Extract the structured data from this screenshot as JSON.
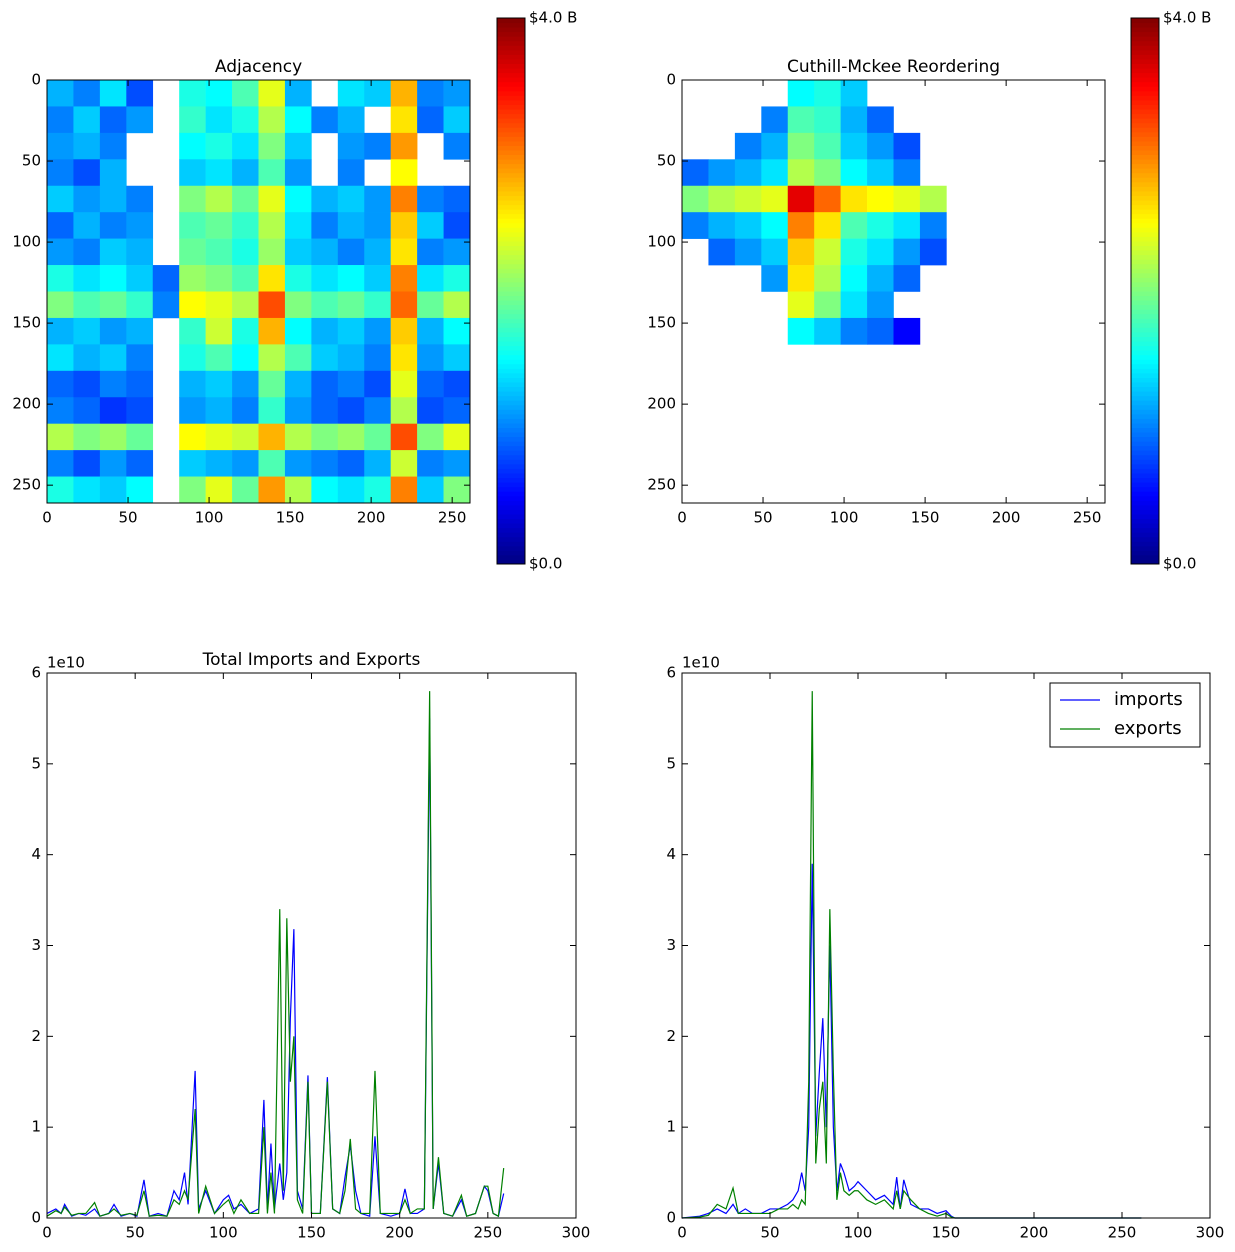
{
  "chart_data": [
    {
      "type": "heatmap",
      "title": "Adjacency",
      "colormap": "jet",
      "xlim": [
        0,
        261
      ],
      "ylim": [
        261,
        0
      ],
      "xticks": [
        0,
        50,
        100,
        150,
        200,
        250
      ],
      "yticks": [
        0,
        50,
        100,
        150,
        200,
        250
      ],
      "colorbar": {
        "lim": [
          0,
          4000000000
        ],
        "ticks": [
          {
            "value": 0,
            "label": "$0.0"
          },
          {
            "value": 4000000000,
            "label": "$4.0 B"
          }
        ]
      },
      "matrix": [
        [
          1200000000.0,
          1000000000.0,
          1400000000.0,
          800000000.0,
          null,
          1600000000.0,
          1500000000.0,
          1800000000.0,
          2400000000.0,
          1200000000.0,
          null,
          1400000000.0,
          1300000000.0,
          2800000000.0,
          1000000000.0,
          1100000000.0
        ],
        [
          1000000000.0,
          1300000000.0,
          900000000.0,
          1100000000.0,
          null,
          1700000000.0,
          1400000000.0,
          1600000000.0,
          2200000000.0,
          1500000000.0,
          1000000000.0,
          1200000000.0,
          null,
          2600000000.0,
          900000000.0,
          1300000000.0
        ],
        [
          1100000000.0,
          1200000000.0,
          1000000000.0,
          null,
          null,
          1500000000.0,
          1600000000.0,
          1400000000.0,
          2000000000.0,
          1300000000.0,
          null,
          1100000000.0,
          1000000000.0,
          2900000000.0,
          null,
          1000000000.0
        ],
        [
          1000000000.0,
          800000000.0,
          1200000000.0,
          null,
          null,
          1300000000.0,
          1400000000.0,
          1200000000.0,
          1800000000.0,
          1100000000.0,
          null,
          1000000000.0,
          null,
          2500000000.0,
          null,
          null
        ],
        [
          1300000000.0,
          1100000000.0,
          1200000000.0,
          1000000000.0,
          null,
          2000000000.0,
          2200000000.0,
          1900000000.0,
          2400000000.0,
          1500000000.0,
          1200000000.0,
          1300000000.0,
          1100000000.0,
          3000000000.0,
          1000000000.0,
          900000000.0
        ],
        [
          900000000.0,
          1200000000.0,
          1000000000.0,
          1100000000.0,
          null,
          1800000000.0,
          1900000000.0,
          1700000000.0,
          2200000000.0,
          1400000000.0,
          1000000000.0,
          1200000000.0,
          1100000000.0,
          2700000000.0,
          1300000000.0,
          800000000.0
        ],
        [
          1100000000.0,
          1000000000.0,
          1300000000.0,
          1200000000.0,
          null,
          1900000000.0,
          1800000000.0,
          1600000000.0,
          2100000000.0,
          1300000000.0,
          1200000000.0,
          1000000000.0,
          1200000000.0,
          2600000000.0,
          1000000000.0,
          1100000000.0
        ],
        [
          1600000000.0,
          1400000000.0,
          1500000000.0,
          1300000000.0,
          900000000.0,
          2100000000.0,
          2000000000.0,
          1800000000.0,
          2600000000.0,
          1600000000.0,
          1400000000.0,
          1500000000.0,
          1300000000.0,
          3000000000.0,
          1400000000.0,
          1600000000.0
        ],
        [
          2000000000.0,
          1800000000.0,
          1900000000.0,
          1700000000.0,
          1000000000.0,
          2500000000.0,
          2400000000.0,
          2200000000.0,
          3200000000.0,
          2000000000.0,
          1800000000.0,
          1900000000.0,
          1700000000.0,
          3100000000.0,
          1900000000.0,
          2200000000.0
        ],
        [
          1200000000.0,
          1300000000.0,
          1100000000.0,
          1200000000.0,
          null,
          1700000000.0,
          2300000000.0,
          1600000000.0,
          2800000000.0,
          1500000000.0,
          1200000000.0,
          1300000000.0,
          1100000000.0,
          2700000000.0,
          1200000000.0,
          1500000000.0
        ],
        [
          1400000000.0,
          1200000000.0,
          1300000000.0,
          1000000000.0,
          null,
          1600000000.0,
          1800000000.0,
          1500000000.0,
          2200000000.0,
          1800000000.0,
          1300000000.0,
          1200000000.0,
          1000000000.0,
          2600000000.0,
          1100000000.0,
          1300000000.0
        ],
        [
          900000000.0,
          800000000.0,
          1000000000.0,
          900000000.0,
          null,
          1200000000.0,
          1300000000.0,
          1100000000.0,
          1900000000.0,
          1200000000.0,
          900000000.0,
          1000000000.0,
          800000000.0,
          2400000000.0,
          900000000.0,
          800000000.0
        ],
        [
          1000000000.0,
          900000000.0,
          700000000.0,
          800000000.0,
          null,
          1100000000.0,
          1200000000.0,
          1000000000.0,
          1700000000.0,
          1100000000.0,
          900000000.0,
          800000000.0,
          1000000000.0,
          2200000000.0,
          800000000.0,
          900000000.0
        ],
        [
          2200000000.0,
          2000000000.0,
          2100000000.0,
          1900000000.0,
          null,
          2500000000.0,
          2400000000.0,
          2300000000.0,
          2800000000.0,
          2200000000.0,
          2000000000.0,
          2100000000.0,
          1900000000.0,
          3200000000.0,
          2000000000.0,
          2400000000.0
        ],
        [
          1000000000.0,
          800000000.0,
          1100000000.0,
          900000000.0,
          null,
          1300000000.0,
          1200000000.0,
          1100000000.0,
          1800000000.0,
          1100000000.0,
          1000000000.0,
          900000000.0,
          1200000000.0,
          2300000000.0,
          1000000000.0,
          1100000000.0
        ],
        [
          1600000000.0,
          1400000000.0,
          1300000000.0,
          1500000000.0,
          null,
          2000000000.0,
          2400000000.0,
          1900000000.0,
          2900000000.0,
          2200000000.0,
          1500000000.0,
          1400000000.0,
          1600000000.0,
          3000000000.0,
          1300000000.0,
          2000000000.0
        ]
      ]
    },
    {
      "type": "heatmap",
      "title": "Cuthill-Mckee Reordering",
      "colormap": "jet",
      "xlim": [
        0,
        261
      ],
      "ylim": [
        261,
        0
      ],
      "xticks": [
        0,
        50,
        100,
        150,
        200,
        250
      ],
      "yticks": [
        0,
        50,
        100,
        150,
        200,
        250
      ],
      "colorbar": {
        "lim": [
          0,
          4000000000
        ],
        "ticks": [
          {
            "value": 0,
            "label": "$0.0"
          },
          {
            "value": 4000000000,
            "label": "$4.0 B"
          }
        ]
      },
      "matrix": [
        [
          null,
          null,
          null,
          null,
          1500000000.0,
          1600000000.0,
          1300000000.0,
          null,
          null,
          null,
          null,
          null,
          null,
          null,
          null,
          null
        ],
        [
          null,
          null,
          null,
          1000000000.0,
          1800000000.0,
          1700000000.0,
          1200000000.0,
          900000000.0,
          null,
          null,
          null,
          null,
          null,
          null,
          null,
          null
        ],
        [
          null,
          null,
          1000000000.0,
          1200000000.0,
          2000000000.0,
          1800000000.0,
          1300000000.0,
          1100000000.0,
          800000000.0,
          null,
          null,
          null,
          null,
          null,
          null,
          null
        ],
        [
          900000000.0,
          1100000000.0,
          1200000000.0,
          1400000000.0,
          2200000000.0,
          2000000000.0,
          1500000000.0,
          1300000000.0,
          1000000000.0,
          null,
          null,
          null,
          null,
          null,
          null,
          null
        ],
        [
          2000000000.0,
          2200000000.0,
          2300000000.0,
          2400000000.0,
          3600000000.0,
          3100000000.0,
          2600000000.0,
          2500000000.0,
          2400000000.0,
          2200000000.0,
          null,
          null,
          null,
          null,
          null,
          null
        ],
        [
          1000000000.0,
          1200000000.0,
          1300000000.0,
          1500000000.0,
          3000000000.0,
          2600000000.0,
          1800000000.0,
          1600000000.0,
          1400000000.0,
          1000000000.0,
          null,
          null,
          null,
          null,
          null,
          null
        ],
        [
          null,
          900000000.0,
          1100000000.0,
          1300000000.0,
          2700000000.0,
          2300000000.0,
          1600000000.0,
          1400000000.0,
          1100000000.0,
          800000000.0,
          null,
          null,
          null,
          null,
          null,
          null
        ],
        [
          null,
          null,
          null,
          1100000000.0,
          2600000000.0,
          2200000000.0,
          1500000000.0,
          1200000000.0,
          900000000.0,
          null,
          null,
          null,
          null,
          null,
          null,
          null
        ],
        [
          null,
          null,
          null,
          null,
          2400000000.0,
          2000000000.0,
          1400000000.0,
          1100000000.0,
          null,
          null,
          null,
          null,
          null,
          null,
          null,
          null
        ],
        [
          null,
          null,
          null,
          null,
          1500000000.0,
          1300000000.0,
          1000000000.0,
          900000000.0,
          500000000.0,
          null,
          null,
          null,
          null,
          null,
          null,
          null
        ],
        [
          null,
          null,
          null,
          null,
          null,
          null,
          null,
          null,
          null,
          null,
          null,
          null,
          null,
          null,
          null,
          null
        ],
        [
          null,
          null,
          null,
          null,
          null,
          null,
          null,
          null,
          null,
          null,
          null,
          null,
          null,
          null,
          null,
          null
        ],
        [
          null,
          null,
          null,
          null,
          null,
          null,
          null,
          null,
          null,
          null,
          null,
          null,
          null,
          null,
          null,
          null
        ],
        [
          null,
          null,
          null,
          null,
          null,
          null,
          null,
          null,
          null,
          null,
          null,
          null,
          null,
          null,
          null,
          null
        ],
        [
          null,
          null,
          null,
          null,
          null,
          null,
          null,
          null,
          null,
          null,
          null,
          null,
          null,
          null,
          null,
          null
        ],
        [
          null,
          null,
          null,
          null,
          null,
          null,
          null,
          null,
          null,
          null,
          null,
          null,
          null,
          null,
          null,
          null
        ]
      ]
    },
    {
      "type": "line",
      "title": "Total Imports and Exports",
      "offset_label": "1e10",
      "xlim": [
        0,
        300
      ],
      "ylim": [
        0,
        6
      ],
      "xticks": [
        0,
        50,
        100,
        150,
        200,
        250,
        300
      ],
      "yticks": [
        0,
        1,
        2,
        3,
        4,
        5,
        6
      ],
      "x": [
        0,
        5,
        8,
        10,
        14,
        18,
        22,
        27,
        30,
        35,
        38,
        42,
        47,
        51,
        55,
        58,
        63,
        68,
        72,
        75,
        78,
        80,
        84,
        86,
        90,
        95,
        100,
        103,
        106,
        110,
        115,
        120,
        123,
        125,
        127,
        129,
        132,
        134,
        136,
        138,
        140,
        142,
        145,
        148,
        150,
        155,
        159,
        162,
        166,
        169,
        172,
        175,
        178,
        183,
        186,
        189,
        195,
        200,
        203,
        206,
        210,
        214,
        217,
        219,
        222,
        225,
        230,
        235,
        238,
        243,
        248,
        250,
        253,
        256,
        259
      ],
      "series": [
        {
          "color": "#0000ff",
          "values": [
            0.05,
            0.1,
            0.05,
            0.15,
            0.02,
            0.05,
            0.03,
            0.1,
            0.02,
            0.05,
            0.15,
            0.02,
            0.05,
            0.02,
            0.42,
            0.02,
            0.05,
            0.02,
            0.3,
            0.2,
            0.5,
            0.15,
            1.62,
            0.1,
            0.3,
            0.05,
            0.2,
            0.25,
            0.1,
            0.15,
            0.05,
            0.1,
            1.3,
            0.1,
            0.82,
            0.1,
            0.6,
            0.2,
            0.5,
            2.2,
            3.18,
            0.3,
            0.1,
            1.57,
            0.05,
            0.05,
            1.55,
            0.1,
            0.05,
            0.45,
            0.8,
            0.3,
            0.05,
            0.02,
            0.9,
            0.05,
            0.02,
            0.05,
            0.32,
            0.05,
            0.05,
            0.1,
            5.5,
            0.1,
            0.6,
            0.05,
            0.02,
            0.2,
            0.02,
            0.05,
            0.35,
            0.3,
            0.05,
            0.02,
            0.27
          ]
        },
        {
          "color": "#008000",
          "values": [
            0.02,
            0.08,
            0.05,
            0.12,
            0.03,
            0.05,
            0.05,
            0.17,
            0.02,
            0.05,
            0.1,
            0.03,
            0.05,
            0.03,
            0.3,
            0.02,
            0.03,
            0.02,
            0.2,
            0.15,
            0.3,
            0.2,
            1.2,
            0.05,
            0.35,
            0.05,
            0.15,
            0.2,
            0.05,
            0.2,
            0.05,
            0.05,
            1.0,
            0.05,
            0.5,
            0.05,
            3.4,
            0.3,
            3.3,
            1.5,
            2.0,
            0.2,
            0.05,
            1.5,
            0.05,
            0.05,
            1.5,
            0.1,
            0.05,
            0.3,
            0.87,
            0.1,
            0.05,
            0.05,
            1.62,
            0.05,
            0.05,
            0.05,
            0.2,
            0.05,
            0.1,
            0.1,
            5.8,
            0.1,
            0.67,
            0.05,
            0.02,
            0.25,
            0.02,
            0.05,
            0.35,
            0.35,
            0.05,
            0.02,
            0.55
          ]
        }
      ]
    },
    {
      "type": "line",
      "offset_label": "1e10",
      "legend": "upper right",
      "xlim": [
        0,
        300
      ],
      "ylim": [
        0,
        6
      ],
      "xticks": [
        0,
        50,
        100,
        150,
        200,
        250,
        300
      ],
      "yticks": [
        0,
        1,
        2,
        3,
        4,
        5,
        6
      ],
      "x": [
        0,
        10,
        15,
        20,
        25,
        29,
        32,
        36,
        40,
        45,
        50,
        55,
        60,
        63,
        66,
        68,
        70,
        72,
        74,
        76,
        78,
        80,
        82,
        84,
        86,
        88,
        90,
        92,
        95,
        98,
        100,
        105,
        110,
        115,
        120,
        122,
        124,
        126,
        130,
        135,
        140,
        145,
        150,
        153,
        155,
        200,
        261
      ],
      "series": [
        {
          "name": "imports",
          "color": "#0000ff",
          "values": [
            0,
            0.02,
            0.05,
            0.1,
            0.05,
            0.15,
            0.05,
            0.1,
            0.05,
            0.05,
            0.1,
            0.1,
            0.15,
            0.2,
            0.3,
            0.5,
            0.3,
            1.0,
            3.9,
            0.9,
            1.6,
            2.2,
            1.0,
            3.0,
            1.0,
            0.3,
            0.6,
            0.5,
            0.3,
            0.35,
            0.4,
            0.3,
            0.2,
            0.25,
            0.15,
            0.45,
            0.1,
            0.42,
            0.15,
            0.1,
            0.1,
            0.05,
            0.08,
            0.02,
            0,
            0,
            0
          ]
        },
        {
          "name": "exports",
          "color": "#008000",
          "values": [
            0,
            0.01,
            0.03,
            0.15,
            0.1,
            0.33,
            0.05,
            0.05,
            0.05,
            0.05,
            0.05,
            0.1,
            0.1,
            0.15,
            0.1,
            0.2,
            0.15,
            1.5,
            5.8,
            0.6,
            1.2,
            1.5,
            0.6,
            3.4,
            1.6,
            0.2,
            0.5,
            0.3,
            0.25,
            0.3,
            0.3,
            0.2,
            0.15,
            0.2,
            0.1,
            0.3,
            0.1,
            0.3,
            0.2,
            0.1,
            0.05,
            0.02,
            0.05,
            0.01,
            0,
            0,
            0
          ]
        }
      ]
    }
  ]
}
